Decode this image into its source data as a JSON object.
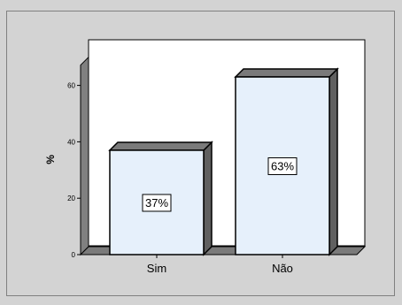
{
  "chart_data": {
    "type": "bar",
    "categories": [
      "Sim",
      "Não"
    ],
    "values": [
      37,
      63
    ],
    "data_labels": [
      "37%",
      "63%"
    ],
    "title": "",
    "xlabel": "",
    "ylabel": "%",
    "ylim": [
      0,
      70
    ],
    "yticks": [
      0,
      20,
      40,
      60
    ],
    "grid": false,
    "legend": "none"
  },
  "colors": {
    "outer_background": "#d3d3d3",
    "plot_background": "#ffffff",
    "bar_fill": "#e6f0fb",
    "bar_side": "#606060",
    "bar_top": "#7a7a7a",
    "floor": "#7a7a7a",
    "wall": "#808080",
    "frame": "#808080"
  }
}
